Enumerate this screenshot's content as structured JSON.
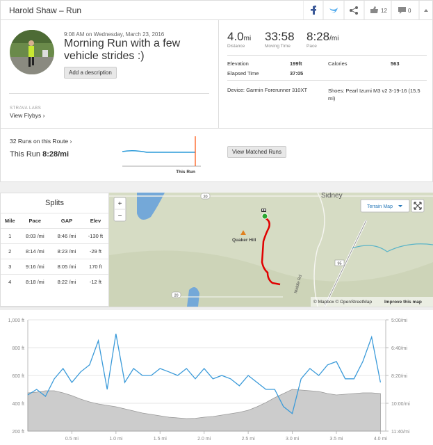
{
  "header": {
    "title": "Harold Shaw – Run",
    "kudos": "12",
    "comments": "0"
  },
  "activity": {
    "time": "9:08 AM on Wednesday, March 23, 2016",
    "name": "Morning Run with a few vehicle strides :)",
    "add_description": "Add a description",
    "labs": "STRAVA LABS",
    "flybys": "View Flybys"
  },
  "stats": {
    "primary": [
      {
        "value": "4.0",
        "unit": "mi",
        "label": "Distance"
      },
      {
        "value": "33:58",
        "label": "Moving Time"
      },
      {
        "value": "8:28",
        "unit": "/mi",
        "label": "Pace"
      }
    ],
    "details": [
      {
        "label": "Elevation",
        "value": "199ft"
      },
      {
        "label": "Calories",
        "value": "563"
      },
      {
        "label": "Elapsed Time",
        "value": "37:05"
      }
    ],
    "device": "Device: Garmin Forerunner 310XT",
    "shoes": "Shoes: Pearl Izumi M3 v2 3-19-16 (15.5 mi)"
  },
  "route": {
    "runs": "32 Runs on this Route",
    "this_run_label": "This Run",
    "this_run_pace": "8:28/mi",
    "marker": "This Run",
    "button": "View Matched Runs"
  },
  "splits": {
    "title": "Splits",
    "headers": [
      "Mile",
      "Pace",
      "GAP",
      "Elev"
    ],
    "rows": [
      [
        "1",
        "8:03 /mi",
        "8:46 /mi",
        "-130 ft"
      ],
      [
        "2",
        "8:14 /mi",
        "8:23 /mi",
        "-29 ft"
      ],
      [
        "3",
        "9:16 /mi",
        "8:05 /mi",
        "170 ft"
      ],
      [
        "4",
        "8:18 /mi",
        "8:22 /mi",
        "-12 ft"
      ]
    ]
  },
  "map": {
    "zoom_in": "+",
    "zoom_out": "−",
    "map_type": "Terrain Map",
    "place_1": "Sidney",
    "place_2": "Quaker Hill",
    "road_name": "Middle Rd",
    "shield_1": "20",
    "shield_2": "95",
    "shield_3": "20",
    "attribution": "© Mapbox © OpenStreetMap",
    "improve": "Improve this map"
  },
  "chart_data": {
    "type": "line",
    "x": [
      0,
      0.1,
      0.2,
      0.3,
      0.4,
      0.5,
      0.6,
      0.7,
      0.8,
      0.9,
      1.0,
      1.1,
      1.2,
      1.3,
      1.4,
      1.5,
      1.6,
      1.7,
      1.8,
      1.9,
      2.0,
      2.1,
      2.2,
      2.3,
      2.4,
      2.5,
      2.6,
      2.7,
      2.8,
      2.9,
      3.0,
      3.1,
      3.2,
      3.3,
      3.4,
      3.5,
      3.6,
      3.7,
      3.8,
      3.9,
      4.0
    ],
    "series": [
      {
        "name": "Elevation",
        "color": "#cccccc",
        "fill": true,
        "values": [
          475,
          480,
          490,
          490,
          475,
          455,
          430,
          410,
          395,
          385,
          375,
          360,
          345,
          330,
          320,
          310,
          300,
          295,
          290,
          292,
          300,
          305,
          315,
          325,
          335,
          350,
          375,
          405,
          440,
          470,
          500,
          495,
          490,
          485,
          470,
          460,
          465,
          470,
          475,
          475,
          470
        ]
      },
      {
        "name": "Pace",
        "color": "#3a9ad9",
        "axis": "y2",
        "values": [
          570,
          550,
          575,
          512,
          475,
          525,
          487,
          462,
          375,
          550,
          350,
          525,
          475,
          500,
          500,
          475,
          487,
          500,
          475,
          512,
          475,
          512,
          500,
          512,
          537,
          500,
          525,
          550,
          550,
          612,
          637,
          512,
          475,
          500,
          462,
          450,
          512,
          512,
          450,
          362,
          525
        ]
      }
    ],
    "xlim": [
      0,
      4.06
    ],
    "xticks": [
      {
        "value": 0.5,
        "label": "0.5 mi"
      },
      {
        "value": 1.0,
        "label": "1.0 mi"
      },
      {
        "value": 1.5,
        "label": "1.5 mi"
      },
      {
        "value": 2.0,
        "label": "2.0 mi"
      },
      {
        "value": 2.5,
        "label": "2.5 mi"
      },
      {
        "value": 3.0,
        "label": "3.0 mi"
      },
      {
        "value": 3.5,
        "label": "3.5 mi"
      },
      {
        "value": 4.0,
        "label": "4.0 mi"
      }
    ],
    "ylim": [
      200,
      1000
    ],
    "yticks": [
      {
        "value": 200,
        "label": "200 ft"
      },
      {
        "value": 400,
        "label": "400 ft"
      },
      {
        "value": 600,
        "label": "600 ft"
      },
      {
        "value": 800,
        "label": "800 ft"
      },
      {
        "value": 1000,
        "label": "1,000 ft"
      }
    ],
    "y2lim": [
      700,
      300
    ],
    "y2ticks": [
      {
        "value": 700,
        "label": "11:40/mi"
      },
      {
        "value": 600,
        "label": "10:00/mi"
      },
      {
        "value": 500,
        "label": "8:20/mi"
      },
      {
        "value": 400,
        "label": "6:40/mi"
      },
      {
        "value": 300,
        "label": "5:00/mi"
      }
    ],
    "grid": true
  }
}
